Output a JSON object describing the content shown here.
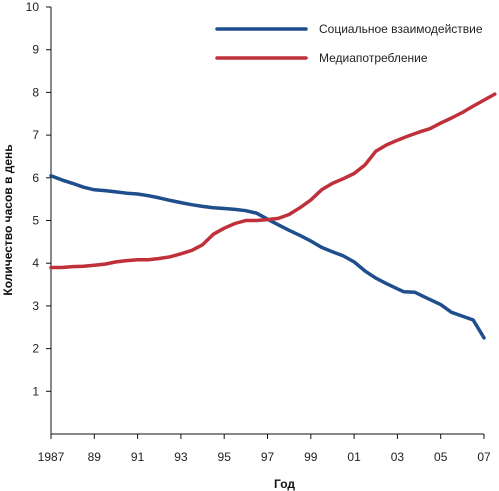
{
  "chart_data": {
    "type": "line",
    "xlabel": "Год",
    "ylabel": "Количество часов в день",
    "xlim": [
      1987,
      2007
    ],
    "ylim": [
      0,
      10
    ],
    "x_ticks": [
      {
        "value": 1987,
        "label": "1987"
      },
      {
        "value": 1989,
        "label": "89"
      },
      {
        "value": 1991,
        "label": "91"
      },
      {
        "value": 1993,
        "label": "93"
      },
      {
        "value": 1995,
        "label": "95"
      },
      {
        "value": 1997,
        "label": "97"
      },
      {
        "value": 1999,
        "label": "99"
      },
      {
        "value": 2001,
        "label": "01"
      },
      {
        "value": 2003,
        "label": "03"
      },
      {
        "value": 2005,
        "label": "05"
      },
      {
        "value": 2007,
        "label": "07"
      }
    ],
    "y_ticks": [
      1,
      2,
      3,
      4,
      5,
      6,
      7,
      8,
      9,
      10
    ],
    "grid": false,
    "legend_position": "top-right",
    "series": [
      {
        "name": "Социальное взаимодействие",
        "color": "#1f4e8c",
        "points": [
          [
            1987.0,
            6.05
          ],
          [
            1987.5,
            5.95
          ],
          [
            1988.0,
            5.87
          ],
          [
            1988.5,
            5.78
          ],
          [
            1989.0,
            5.72
          ],
          [
            1989.5,
            5.7
          ],
          [
            1990.0,
            5.67
          ],
          [
            1990.5,
            5.64
          ],
          [
            1991.0,
            5.62
          ],
          [
            1991.5,
            5.58
          ],
          [
            1992.0,
            5.53
          ],
          [
            1992.5,
            5.47
          ],
          [
            1993.0,
            5.42
          ],
          [
            1993.5,
            5.37
          ],
          [
            1994.0,
            5.33
          ],
          [
            1994.5,
            5.3
          ],
          [
            1995.0,
            5.28
          ],
          [
            1995.5,
            5.26
          ],
          [
            1996.0,
            5.23
          ],
          [
            1996.5,
            5.17
          ],
          [
            1997.0,
            5.03
          ],
          [
            1997.5,
            4.9
          ],
          [
            1998.0,
            4.77
          ],
          [
            1998.5,
            4.65
          ],
          [
            1999.0,
            4.52
          ],
          [
            1999.5,
            4.37
          ],
          [
            2000.0,
            4.27
          ],
          [
            2000.5,
            4.17
          ],
          [
            2001.0,
            4.03
          ],
          [
            2001.5,
            3.82
          ],
          [
            2002.0,
            3.65
          ],
          [
            2002.5,
            3.52
          ],
          [
            2003.0,
            3.4
          ],
          [
            2003.3,
            3.33
          ],
          [
            2003.8,
            3.32
          ],
          [
            2004.3,
            3.2
          ],
          [
            2005.0,
            3.03
          ],
          [
            2005.5,
            2.85
          ],
          [
            2006.0,
            2.76
          ],
          [
            2006.5,
            2.67
          ],
          [
            2007.0,
            2.25
          ]
        ]
      },
      {
        "name": "Медиапотребление",
        "color": "#c0303a",
        "points": [
          [
            1987.0,
            3.9
          ],
          [
            1987.5,
            3.9
          ],
          [
            1988.0,
            3.92
          ],
          [
            1988.5,
            3.93
          ],
          [
            1989.0,
            3.95
          ],
          [
            1989.5,
            3.98
          ],
          [
            1990.0,
            4.03
          ],
          [
            1990.5,
            4.06
          ],
          [
            1991.0,
            4.08
          ],
          [
            1991.5,
            4.08
          ],
          [
            1992.0,
            4.11
          ],
          [
            1992.5,
            4.15
          ],
          [
            1993.0,
            4.22
          ],
          [
            1993.5,
            4.3
          ],
          [
            1994.0,
            4.43
          ],
          [
            1994.5,
            4.68
          ],
          [
            1995.0,
            4.82
          ],
          [
            1995.5,
            4.93
          ],
          [
            1996.0,
            5.0
          ],
          [
            1996.5,
            5.0
          ],
          [
            1997.0,
            5.02
          ],
          [
            1997.5,
            5.05
          ],
          [
            1998.0,
            5.14
          ],
          [
            1998.5,
            5.3
          ],
          [
            1999.0,
            5.48
          ],
          [
            1999.5,
            5.72
          ],
          [
            2000.0,
            5.87
          ],
          [
            2000.5,
            5.98
          ],
          [
            2001.0,
            6.1
          ],
          [
            2001.5,
            6.3
          ],
          [
            2002.0,
            6.62
          ],
          [
            2002.5,
            6.77
          ],
          [
            2003.0,
            6.88
          ],
          [
            2003.5,
            6.98
          ],
          [
            2004.0,
            7.07
          ],
          [
            2004.5,
            7.15
          ],
          [
            2005.0,
            7.28
          ],
          [
            2005.5,
            7.4
          ],
          [
            2006.0,
            7.53
          ],
          [
            2006.5,
            7.68
          ],
          [
            2007.0,
            7.82
          ],
          [
            2007.5,
            7.96
          ]
        ]
      }
    ]
  }
}
